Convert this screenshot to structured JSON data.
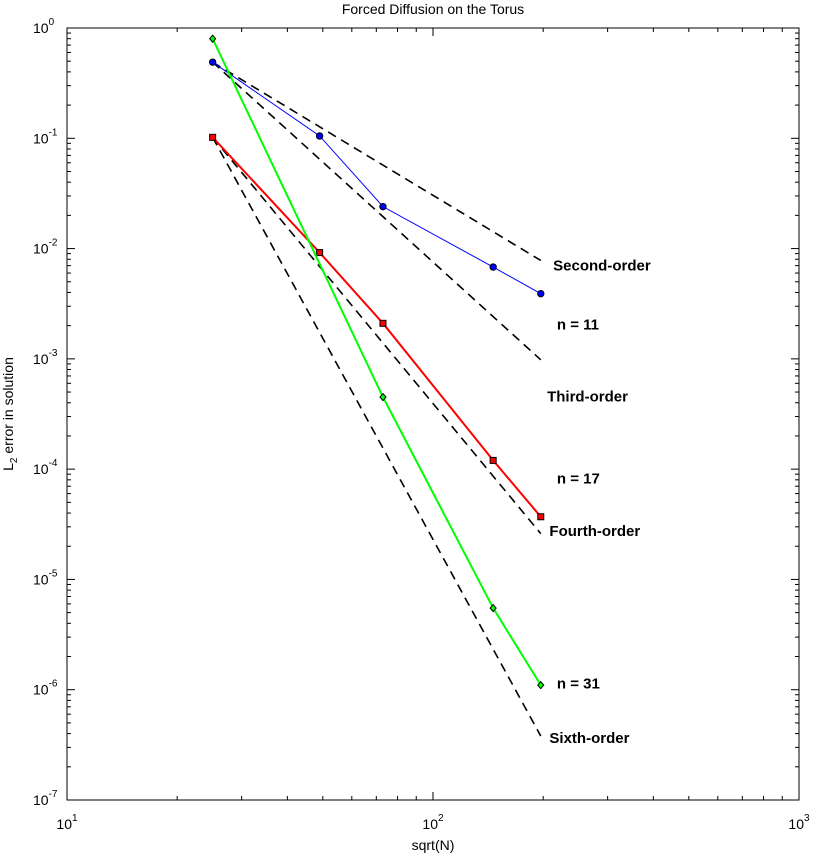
{
  "chart_data": {
    "type": "line",
    "title": "Forced Diffusion on the Torus",
    "xlabel": "sqrt(N)",
    "ylabel_main": "L",
    "ylabel_sub": "2",
    "ylabel_rest": " error in solution",
    "xscale": "log",
    "yscale": "log",
    "xlim": [
      10,
      1000
    ],
    "ylim": [
      1e-07,
      1
    ],
    "grid": false,
    "x_ticks": [
      {
        "value": 10,
        "base": "10",
        "exp": "1"
      },
      {
        "value": 100,
        "base": "10",
        "exp": "2"
      },
      {
        "value": 1000,
        "base": "10",
        "exp": "3"
      }
    ],
    "y_ticks": [
      {
        "value": 1,
        "base": "10",
        "exp": "0"
      },
      {
        "value": 0.1,
        "base": "10",
        "exp": "-1"
      },
      {
        "value": 0.01,
        "base": "10",
        "exp": "-2"
      },
      {
        "value": 0.001,
        "base": "10",
        "exp": "-3"
      },
      {
        "value": 0.0001,
        "base": "10",
        "exp": "-4"
      },
      {
        "value": 1e-05,
        "base": "10",
        "exp": "-5"
      },
      {
        "value": 1e-06,
        "base": "10",
        "exp": "-6"
      },
      {
        "value": 1e-07,
        "base": "10",
        "exp": "-7"
      }
    ],
    "series": [
      {
        "label": "n = 11",
        "color": "#0000ff",
        "marker": "circle",
        "x": [
          25,
          49,
          73,
          146,
          197
        ],
        "y": [
          0.49,
          0.105,
          0.024,
          0.0068,
          0.0039
        ]
      },
      {
        "label": "n = 17",
        "color": "#ff0000",
        "marker": "square",
        "x": [
          25,
          49,
          73,
          146,
          197
        ],
        "y": [
          0.102,
          0.0092,
          0.0021,
          0.00012,
          3.7e-05
        ]
      },
      {
        "label": "n = 31",
        "color": "#00ff00",
        "marker": "diamond",
        "x": [
          25,
          73,
          146,
          197
        ],
        "y": [
          0.8,
          0.00045,
          5.5e-06,
          1.1e-06
        ]
      }
    ],
    "reference_lines": [
      {
        "label": "Second-order",
        "x": [
          25,
          197
        ],
        "y": [
          0.49,
          0.0078
        ]
      },
      {
        "label": "Third-order",
        "x": [
          25,
          197
        ],
        "y": [
          0.49,
          0.00098
        ]
      },
      {
        "label": "Fourth-order",
        "x": [
          25,
          197
        ],
        "y": [
          0.102,
          2.6e-05
        ]
      },
      {
        "label": "Sixth-order",
        "x": [
          25,
          197
        ],
        "y": [
          0.102,
          3.8e-07
        ]
      }
    ],
    "annotations": [
      {
        "text": "Second-order",
        "x": 213,
        "y": 0.0063
      },
      {
        "text": "n = 11",
        "x": 218,
        "y": 0.00185
      },
      {
        "text": "Third-order",
        "x": 205,
        "y": 0.00041
      },
      {
        "text": "n = 17",
        "x": 218,
        "y": 7.4e-05
      },
      {
        "text": "Fourth-order",
        "x": 208,
        "y": 2.48e-05
      },
      {
        "text": "n = 31",
        "x": 218,
        "y": 1.03e-06
      },
      {
        "text": "Sixth-order",
        "x": 208,
        "y": 3.3e-07
      }
    ]
  }
}
